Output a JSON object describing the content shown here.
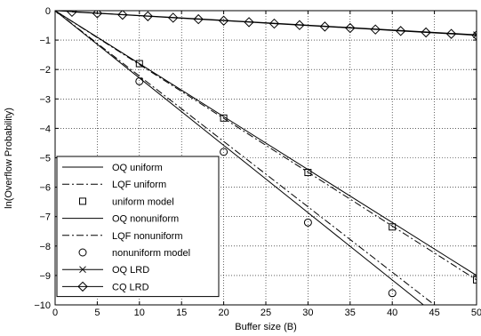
{
  "chart_data": {
    "type": "line",
    "title": "",
    "xlabel": "Buffer size (B)",
    "ylabel": "ln(Overflow Probability)",
    "xlim": [
      0,
      50
    ],
    "ylim": [
      -10,
      0
    ],
    "xticks": [
      "0",
      "5",
      "10",
      "15",
      "20",
      "25",
      "30",
      "35",
      "40",
      "45",
      "50"
    ],
    "yticks": [
      "0",
      "−1",
      "−2",
      "−3",
      "−4",
      "−5",
      "−6",
      "−7",
      "−8",
      "−9",
      "−10"
    ],
    "grid": true,
    "legend_position": "bottom-left",
    "series": [
      {
        "name": "OQ uniform",
        "style": "solid",
        "marker": "none",
        "x": [
          0,
          50
        ],
        "y": [
          0,
          -9.0
        ]
      },
      {
        "name": "LQF uniform",
        "style": "dashdot",
        "marker": "none",
        "x": [
          0,
          50
        ],
        "y": [
          0,
          -9.15
        ]
      },
      {
        "name": "uniform model",
        "style": "none",
        "marker": "square",
        "x": [
          10,
          20,
          30,
          40,
          50
        ],
        "y": [
          -1.8,
          -3.65,
          -5.5,
          -7.35,
          -9.15
        ]
      },
      {
        "name": "OQ nonuniform",
        "style": "solid",
        "marker": "none",
        "x": [
          0,
          43.7
        ],
        "y": [
          0,
          -10.0
        ]
      },
      {
        "name": "LQF nonuniform",
        "style": "dashdot",
        "marker": "none",
        "x": [
          0,
          45
        ],
        "y": [
          0,
          -10.0
        ]
      },
      {
        "name": "nonuniform model",
        "style": "none",
        "marker": "circle",
        "x": [
          10,
          20,
          30,
          40
        ],
        "y": [
          -2.4,
          -4.8,
          -7.2,
          -9.6
        ]
      },
      {
        "name": "OQ LRD",
        "style": "solid",
        "marker": "x",
        "x": [
          0,
          50
        ],
        "y": [
          0,
          -0.82
        ]
      },
      {
        "name": "CQ LRD",
        "style": "solid",
        "marker": "diamond",
        "x": [
          2,
          5,
          8,
          11,
          14,
          17,
          20,
          23,
          26,
          29,
          32,
          35,
          38,
          41,
          44,
          47,
          50
        ],
        "y": [
          -0.04,
          -0.09,
          -0.14,
          -0.19,
          -0.24,
          -0.29,
          -0.34,
          -0.39,
          -0.44,
          -0.49,
          -0.54,
          -0.59,
          -0.64,
          -0.69,
          -0.74,
          -0.79,
          -0.84
        ]
      }
    ]
  }
}
